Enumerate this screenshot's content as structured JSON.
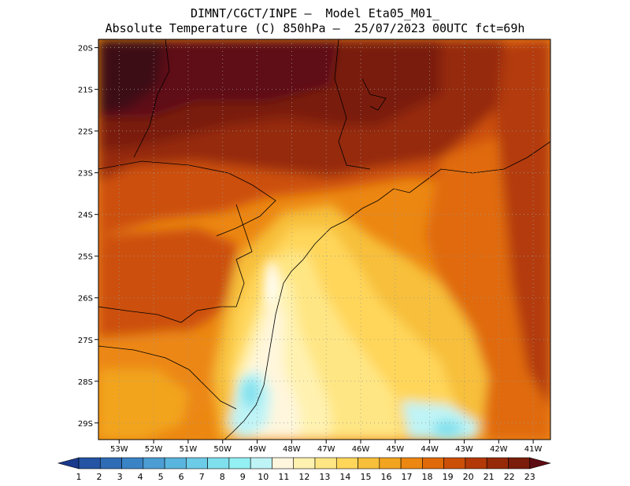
{
  "title": {
    "line1": "DIMNT/CGCT/INPE –  Model Eta05_M01_",
    "line2": "Absolute Temperature (C) 850hPa –  25/07/2023 00UTC fct=69h"
  },
  "map": {
    "lat_labels": [
      "20S",
      "21S",
      "22S",
      "23S",
      "24S",
      "25S",
      "26S",
      "27S",
      "28S",
      "29S"
    ],
    "lon_labels": [
      "53W",
      "52W",
      "51W",
      "50W",
      "49W",
      "48W",
      "47W",
      "46W",
      "45W",
      "44W",
      "43W",
      "42W",
      "41W"
    ],
    "lat_range": [
      -19.8,
      -29.4
    ],
    "lon_range": [
      -53.6,
      -40.5
    ],
    "gridlines": true,
    "gridline_style": "dotted"
  },
  "colorbar": {
    "labels": [
      "1",
      "2",
      "3",
      "4",
      "5",
      "6",
      "7",
      "8",
      "9",
      "10",
      "11",
      "12",
      "13",
      "14",
      "15",
      "16",
      "17",
      "18",
      "19",
      "20",
      "21",
      "22",
      "23"
    ],
    "colors": [
      "#1a3a8c",
      "#2454a3",
      "#2f6cb6",
      "#3a84c6",
      "#4b9dd4",
      "#5ab5de",
      "#6ccbe6",
      "#7fdfed",
      "#93f0f3",
      "#bff4f6",
      "#fff6dd",
      "#fff2b0",
      "#ffe684",
      "#ffd65a",
      "#f7bf3a",
      "#f2a41f",
      "#ec8712",
      "#e06a0a",
      "#cc4f08",
      "#b33a08",
      "#962a08",
      "#7a1d0a",
      "#5e0d12"
    ],
    "units": "C"
  }
}
